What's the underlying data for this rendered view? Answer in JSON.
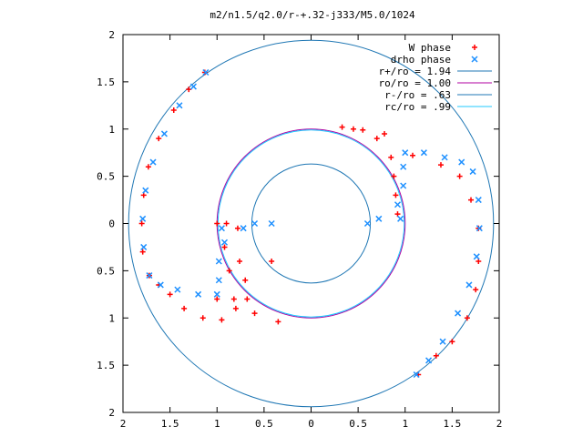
{
  "chart_data": {
    "type": "scatter",
    "title": "m2/n1.5/q2.0/r-+.32-j333/M5.0/1024",
    "xlabel": "",
    "ylabel": "",
    "xlim": [
      -2,
      2
    ],
    "ylim": [
      -2,
      2
    ],
    "grid": false,
    "legend_position": "top-right",
    "x_tick_labels": [
      "2",
      "1.5",
      "1",
      "0.5",
      "0",
      "0.5",
      "1",
      "1.5",
      "2"
    ],
    "y_tick_labels": [
      "2",
      "1.5",
      "1",
      "0.5",
      "0",
      "0.5",
      "1",
      "1.5",
      "2"
    ],
    "x_tick_values": [
      -2,
      -1.5,
      -1,
      -0.5,
      0,
      0.5,
      1,
      1.5,
      2
    ],
    "y_tick_values": [
      -2,
      -1.5,
      -1,
      -0.5,
      0,
      0.5,
      1,
      1.5,
      2
    ],
    "points_series": [
      {
        "name": "W phase",
        "marker": "+",
        "color": "#ff0000",
        "x": [
          -1.13,
          -1.3,
          -1.46,
          -1.62,
          -1.73,
          -1.78,
          -1.8,
          -1.79,
          -1.72,
          -1.62,
          -1.5,
          -1.35,
          -1.15,
          -0.95,
          -0.82,
          -0.76,
          -0.78,
          -0.9,
          -1.0,
          -0.92,
          -0.87,
          -0.68,
          -0.35,
          -0.6,
          -0.8,
          -1.0,
          -0.7,
          -0.42,
          0.33,
          0.55,
          0.78,
          1.08,
          1.38,
          1.58,
          1.7,
          1.78,
          1.78,
          1.75,
          1.66,
          1.5,
          1.33,
          1.14,
          0.92,
          0.9,
          0.88,
          0.85,
          0.7,
          0.45
        ],
        "y": [
          1.6,
          1.42,
          1.2,
          0.9,
          0.6,
          0.3,
          0.0,
          -0.3,
          -0.55,
          -0.65,
          -0.75,
          -0.9,
          -1.0,
          -1.02,
          -0.8,
          -0.4,
          -0.05,
          0.0,
          0.0,
          -0.25,
          -0.5,
          -0.8,
          -1.04,
          -0.95,
          -0.9,
          -0.8,
          -0.6,
          -0.4,
          1.02,
          0.99,
          0.95,
          0.72,
          0.62,
          0.5,
          0.25,
          -0.05,
          -0.4,
          -0.7,
          -1.0,
          -1.25,
          -1.4,
          -1.6,
          0.1,
          0.3,
          0.5,
          0.7,
          0.9,
          1.0
        ]
      },
      {
        "name": "drho phase",
        "marker": "x",
        "color": "#1e90ff",
        "x": [
          -1.12,
          -1.25,
          -1.4,
          -1.56,
          -1.68,
          -1.76,
          -1.79,
          -1.78,
          -1.72,
          -1.6,
          -1.42,
          -1.2,
          -1.0,
          -0.98,
          -0.95,
          -0.72,
          -0.92,
          -0.98,
          -0.6,
          -0.42,
          1.12,
          1.25,
          1.4,
          1.56,
          1.68,
          1.76,
          1.79,
          1.78,
          1.72,
          1.6,
          1.42,
          1.2,
          1.0,
          0.98,
          0.95,
          0.72,
          0.92,
          0.98,
          0.6
        ],
        "y": [
          1.6,
          1.45,
          1.25,
          0.95,
          0.65,
          0.35,
          0.05,
          -0.25,
          -0.55,
          -0.65,
          -0.7,
          -0.75,
          -0.75,
          -0.4,
          -0.05,
          -0.05,
          -0.2,
          -0.6,
          0.0,
          0.0,
          -1.6,
          -1.45,
          -1.25,
          -0.95,
          -0.65,
          -0.35,
          -0.05,
          0.25,
          0.55,
          0.65,
          0.7,
          0.75,
          0.75,
          0.4,
          0.05,
          0.05,
          0.2,
          0.6,
          0.0
        ]
      }
    ],
    "circle_series": [
      {
        "name": "r+/ro = 1.94",
        "r": 1.94,
        "color": "#1f77b4"
      },
      {
        "name": "ro/ro = 1.00",
        "r": 1.0,
        "color": "#b000a0"
      },
      {
        "name": "r-/ro = .63",
        "r": 0.63,
        "color": "#1f77b4"
      },
      {
        "name": "rc/ro = .99",
        "r": 0.99,
        "color": "#20c8ff"
      }
    ]
  }
}
